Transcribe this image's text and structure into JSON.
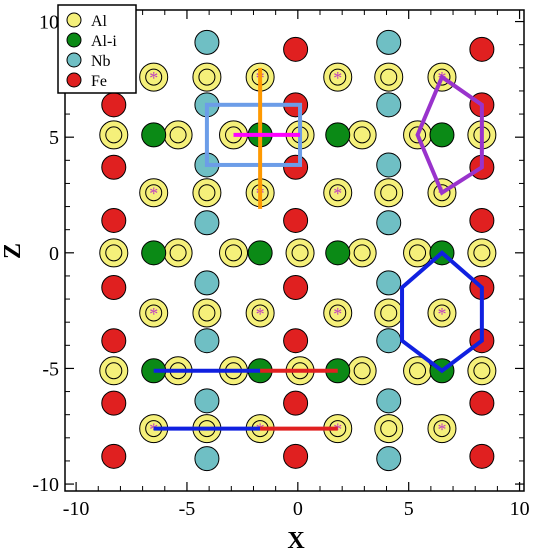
{
  "chart_data": {
    "type": "scatter",
    "title": "",
    "xlabel": "X",
    "ylabel": "Z",
    "xlim": [
      -10.5,
      10.2
    ],
    "ylim": [
      -10.3,
      10.5
    ],
    "x_ticks": [
      -10,
      -5,
      0,
      5,
      10
    ],
    "y_ticks": [
      -10,
      -5,
      0,
      5,
      10
    ],
    "x_tick_labels": [
      "-10",
      "-5",
      "0",
      "5",
      "10"
    ],
    "y_tick_labels": [
      "-10",
      "-5",
      "0",
      "5",
      "10"
    ],
    "grid": false,
    "legend_position": "top-left",
    "legend": [
      {
        "label": "Al",
        "color": "#f5f07a"
      },
      {
        "label": "Al-i",
        "color": "#0b8a16"
      },
      {
        "label": "Nb",
        "color": "#6fbfc4"
      },
      {
        "label": "Fe",
        "color": "#e02020"
      }
    ],
    "series": [
      {
        "name": "Al",
        "color": "#f5f07a",
        "points": [
          [
            -6.5,
            7.6
          ],
          [
            -4.1,
            7.6
          ],
          [
            -1.7,
            7.6
          ],
          [
            1.8,
            7.6
          ],
          [
            4.1,
            7.6
          ],
          [
            6.5,
            7.6
          ],
          [
            -8.3,
            5.1
          ],
          [
            -5.4,
            5.1
          ],
          [
            -2.9,
            5.1
          ],
          [
            0.1,
            5.1
          ],
          [
            2.9,
            5.1
          ],
          [
            5.4,
            5.1
          ],
          [
            8.3,
            5.1
          ],
          [
            -6.5,
            2.6
          ],
          [
            -4.1,
            2.6
          ],
          [
            -1.7,
            2.6
          ],
          [
            1.8,
            2.6
          ],
          [
            4.1,
            2.6
          ],
          [
            6.5,
            2.6
          ],
          [
            -8.3,
            0.0
          ],
          [
            -5.4,
            0.0
          ],
          [
            -2.9,
            0.0
          ],
          [
            0.1,
            0.0
          ],
          [
            2.9,
            0.0
          ],
          [
            5.4,
            0.0
          ],
          [
            8.3,
            0.0
          ],
          [
            -6.5,
            -2.6
          ],
          [
            -4.1,
            -2.6
          ],
          [
            -1.7,
            -2.6
          ],
          [
            1.8,
            -2.6
          ],
          [
            4.1,
            -2.6
          ],
          [
            6.5,
            -2.6
          ],
          [
            -8.3,
            -5.1
          ],
          [
            -5.4,
            -5.1
          ],
          [
            -2.9,
            -5.1
          ],
          [
            0.1,
            -5.1
          ],
          [
            2.9,
            -5.1
          ],
          [
            5.4,
            -5.1
          ],
          [
            8.3,
            -5.1
          ],
          [
            -6.5,
            -7.6
          ],
          [
            -4.1,
            -7.6
          ],
          [
            -1.7,
            -7.6
          ],
          [
            1.8,
            -7.6
          ],
          [
            4.1,
            -7.6
          ],
          [
            6.5,
            -7.6
          ]
        ]
      },
      {
        "name": "Al-i",
        "color": "#0b8a16",
        "points": [
          [
            -6.5,
            5.1
          ],
          [
            -1.7,
            5.1
          ],
          [
            1.8,
            5.1
          ],
          [
            6.5,
            5.1
          ],
          [
            -6.5,
            0.0
          ],
          [
            -1.7,
            0.0
          ],
          [
            1.8,
            0.0
          ],
          [
            6.5,
            0.0
          ],
          [
            -6.5,
            -5.1
          ],
          [
            -1.7,
            -5.1
          ],
          [
            1.8,
            -5.1
          ],
          [
            6.5,
            -5.1
          ]
        ]
      },
      {
        "name": "Nb",
        "color": "#6fbfc4",
        "points": [
          [
            -4.1,
            9.1
          ],
          [
            4.1,
            9.1
          ],
          [
            -4.1,
            6.4
          ],
          [
            4.1,
            6.4
          ],
          [
            -4.1,
            3.8
          ],
          [
            4.1,
            3.8
          ],
          [
            -4.1,
            1.3
          ],
          [
            4.1,
            1.3
          ],
          [
            -4.1,
            -1.3
          ],
          [
            4.1,
            -1.3
          ],
          [
            -4.1,
            -3.8
          ],
          [
            4.1,
            -3.8
          ],
          [
            -4.1,
            -6.4
          ],
          [
            4.1,
            -6.4
          ],
          [
            -4.1,
            -8.9
          ],
          [
            4.1,
            -8.9
          ]
        ]
      },
      {
        "name": "Fe",
        "color": "#e02020",
        "points": [
          [
            -0.1,
            8.8
          ],
          [
            8.3,
            8.8
          ],
          [
            -8.3,
            6.4
          ],
          [
            -0.1,
            6.4
          ],
          [
            8.3,
            6.4
          ],
          [
            -8.3,
            3.7
          ],
          [
            -0.1,
            3.7
          ],
          [
            8.3,
            3.7
          ],
          [
            -8.3,
            1.4
          ],
          [
            -0.1,
            1.4
          ],
          [
            8.3,
            1.4
          ],
          [
            -8.3,
            -1.5
          ],
          [
            -0.1,
            -1.5
          ],
          [
            8.3,
            -1.5
          ],
          [
            -8.3,
            -3.8
          ],
          [
            -0.1,
            -3.8
          ],
          [
            8.3,
            -3.8
          ],
          [
            -8.3,
            -6.5
          ],
          [
            -0.1,
            -6.5
          ],
          [
            8.3,
            -6.5
          ],
          [
            -8.3,
            -8.8
          ],
          [
            -0.1,
            -8.8
          ],
          [
            8.3,
            -8.8
          ]
        ]
      }
    ],
    "asterisk_marks": {
      "color": "#c040c0",
      "points": [
        [
          -6.5,
          7.6
        ],
        [
          -1.7,
          7.6
        ],
        [
          1.8,
          7.6
        ],
        [
          6.5,
          7.6
        ],
        [
          -6.5,
          2.6
        ],
        [
          -1.7,
          2.6
        ],
        [
          1.8,
          2.6
        ],
        [
          6.5,
          2.6
        ],
        [
          -6.5,
          -2.6
        ],
        [
          -1.7,
          -2.6
        ],
        [
          1.8,
          -2.6
        ],
        [
          6.5,
          -2.6
        ],
        [
          -6.5,
          -7.6
        ],
        [
          -1.7,
          -7.6
        ],
        [
          1.8,
          -7.6
        ],
        [
          6.5,
          -7.6
        ]
      ]
    },
    "annotations": [
      {
        "kind": "rect",
        "color": "#6c9de8",
        "x": [
          -4.1,
          0.1
        ],
        "y": [
          3.8,
          6.4
        ]
      },
      {
        "kind": "line",
        "color": "#ff9900",
        "points": [
          [
            -1.7,
            8.0
          ],
          [
            -1.7,
            1.9
          ]
        ]
      },
      {
        "kind": "line",
        "color": "#ff00ff",
        "points": [
          [
            -2.9,
            5.1
          ],
          [
            0.1,
            5.1
          ]
        ]
      },
      {
        "kind": "polygon",
        "color": "#9933cc",
        "points": [
          [
            6.5,
            7.6
          ],
          [
            8.3,
            6.4
          ],
          [
            8.3,
            3.7
          ],
          [
            6.5,
            2.6
          ],
          [
            5.4,
            5.1
          ]
        ]
      },
      {
        "kind": "polygon",
        "color": "#1020e0",
        "points": [
          [
            6.5,
            0.0
          ],
          [
            8.3,
            -1.5
          ],
          [
            8.3,
            -3.8
          ],
          [
            6.5,
            -5.1
          ],
          [
            4.7,
            -3.8
          ],
          [
            4.7,
            -1.5
          ]
        ]
      },
      {
        "kind": "line",
        "color": "#1020e0",
        "points": [
          [
            -6.5,
            -5.1
          ],
          [
            -1.7,
            -5.1
          ]
        ]
      },
      {
        "kind": "line",
        "color": "#e02020",
        "points": [
          [
            -1.7,
            -5.1
          ],
          [
            1.8,
            -5.1
          ]
        ]
      },
      {
        "kind": "line",
        "color": "#1020e0",
        "points": [
          [
            -6.5,
            -7.6
          ],
          [
            -1.7,
            -7.6
          ]
        ]
      },
      {
        "kind": "line",
        "color": "#e02020",
        "points": [
          [
            -1.7,
            -7.6
          ],
          [
            1.8,
            -7.6
          ]
        ]
      }
    ]
  }
}
